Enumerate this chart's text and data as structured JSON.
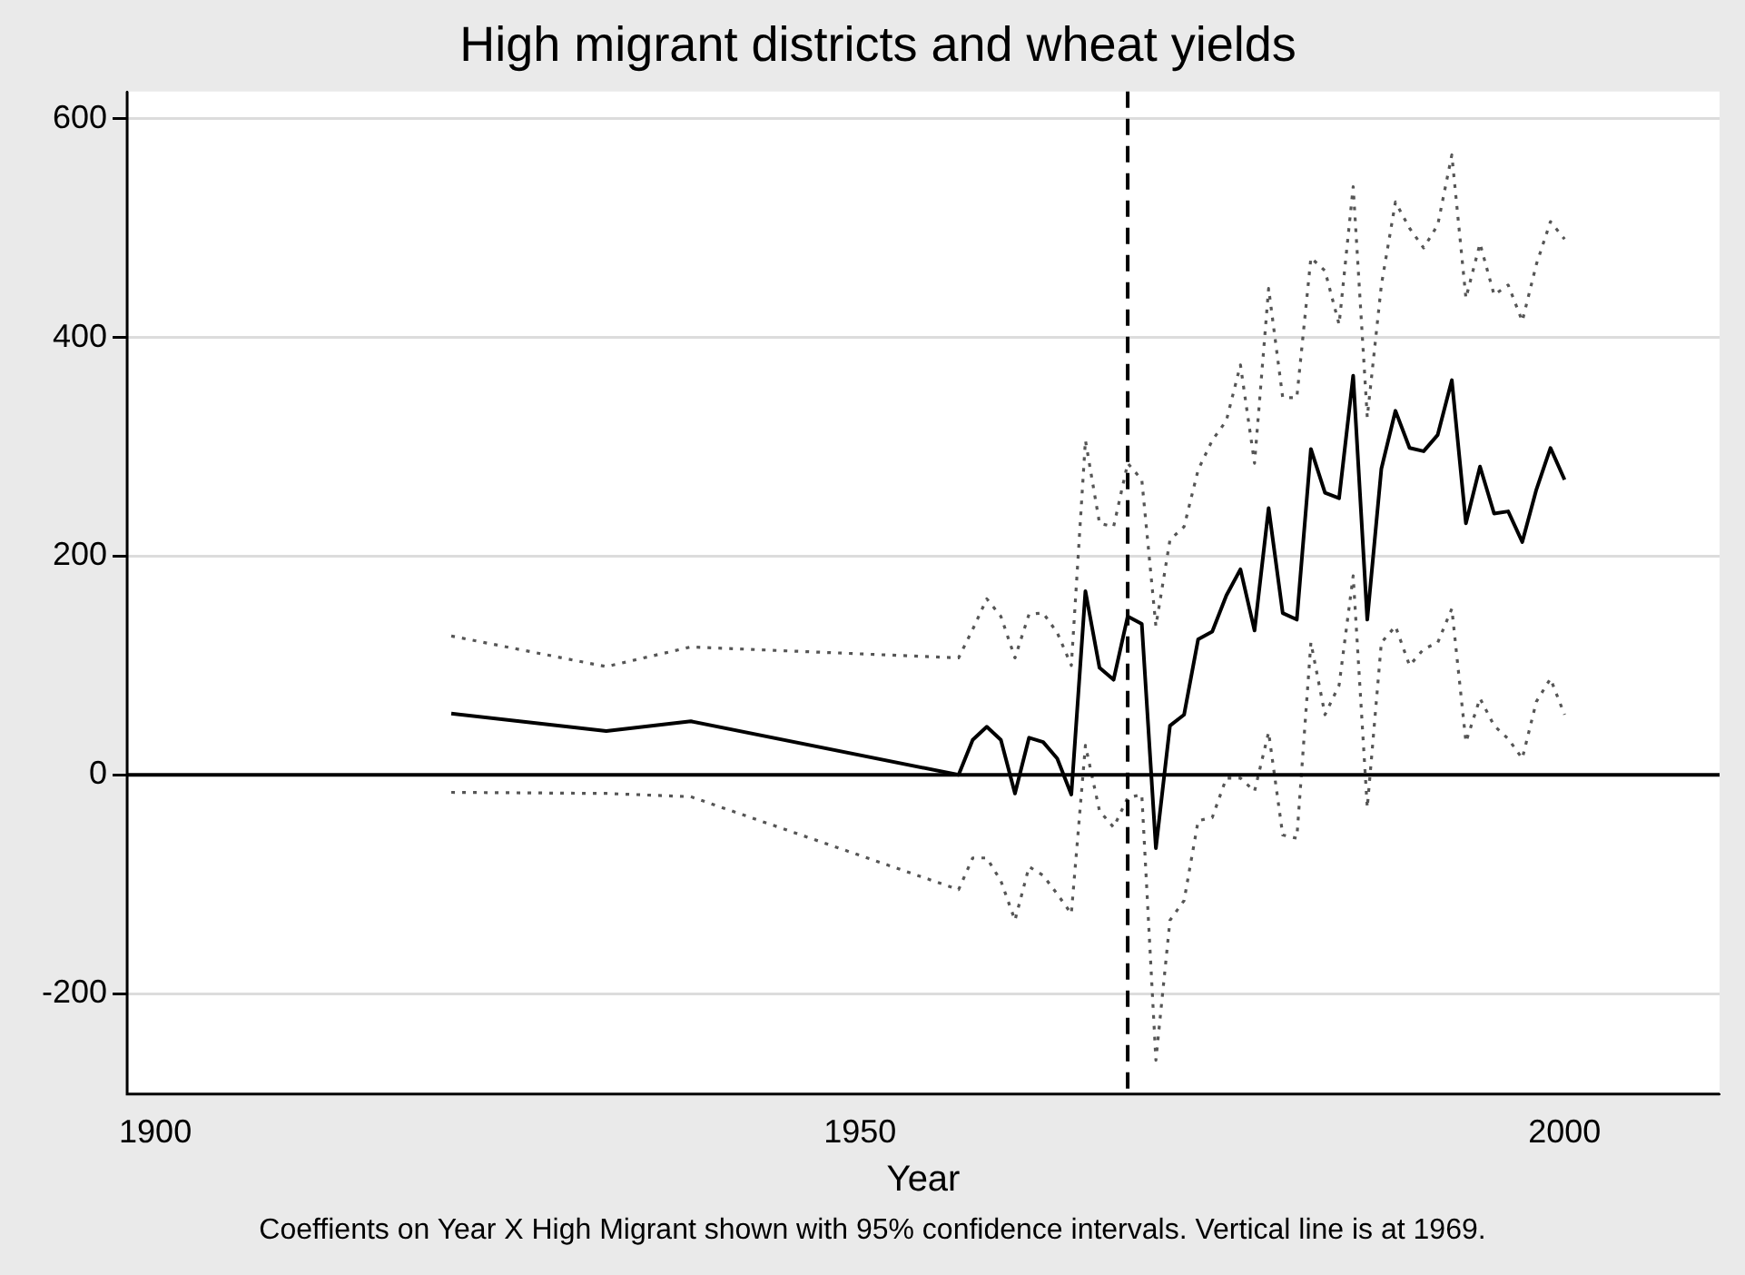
{
  "chart_data": {
    "type": "line",
    "title": "High migrant districts and wheat yields",
    "xlabel": "Year",
    "annotations": [
      "Coeffients on Year X High Migrant shown with 95% confidence intervals. Vertical line is at 1969."
    ],
    "xlim": [
      1898,
      2011
    ],
    "xticks": [
      1900,
      1950,
      2000
    ],
    "ylim": [
      -292,
      625
    ],
    "yticks": [
      -200,
      0,
      200,
      400,
      600
    ],
    "grid": "y",
    "legend": false,
    "marker": "none",
    "ref_lines": [
      {
        "axis": "y",
        "value": 0,
        "color": "#000000",
        "line_style": "solid"
      },
      {
        "axis": "x",
        "value": 1969,
        "color": "#000000",
        "line_style": "dashed"
      }
    ],
    "series": [
      {
        "color": "#000000",
        "line_style": "solid",
        "x": [
          1921,
          1932,
          1938,
          1957,
          1958,
          1959,
          1960,
          1961,
          1962,
          1963,
          1964,
          1965,
          1966,
          1967,
          1968,
          1969,
          1970,
          1971,
          1972,
          1973,
          1974,
          1975,
          1976,
          1977,
          1978,
          1979,
          1980,
          1981,
          1982,
          1983,
          1984,
          1985,
          1986,
          1987,
          1988,
          1989,
          1990,
          1991,
          1992,
          1993,
          1994,
          1995,
          1996,
          1997,
          1998,
          1999,
          2000
        ],
        "values": [
          56,
          40,
          49,
          0,
          32,
          44,
          32,
          -17,
          34,
          30,
          15,
          -18,
          168,
          98,
          87,
          145,
          138,
          -67,
          45,
          55,
          124,
          131,
          164,
          188,
          132,
          244,
          148,
          142,
          298,
          258,
          253,
          365,
          142,
          280,
          333,
          299,
          296,
          311,
          361,
          230,
          282,
          239,
          241,
          213,
          261,
          299,
          270
        ]
      },
      {
        "color": "#555555",
        "line_style": "dotted",
        "x": [
          1921,
          1932,
          1938,
          1957,
          1958,
          1959,
          1960,
          1961,
          1962,
          1963,
          1964,
          1965,
          1966,
          1967,
          1968,
          1969,
          1970,
          1971,
          1972,
          1973,
          1974,
          1975,
          1976,
          1977,
          1978,
          1979,
          1980,
          1981,
          1982,
          1983,
          1984,
          1985,
          1986,
          1987,
          1988,
          1989,
          1990,
          1991,
          1992,
          1993,
          1994,
          1995,
          1996,
          1997,
          1998,
          1999,
          2000
        ],
        "values": [
          127,
          99,
          117,
          107,
          133,
          161,
          145,
          107,
          147,
          148,
          130,
          100,
          306,
          230,
          227,
          285,
          270,
          136,
          215,
          227,
          279,
          306,
          324,
          375,
          285,
          445,
          345,
          345,
          473,
          461,
          412,
          538,
          327,
          448,
          524,
          500,
          482,
          503,
          567,
          436,
          486,
          439,
          448,
          415,
          467,
          506,
          490
        ]
      },
      {
        "color": "#555555",
        "line_style": "dotted",
        "x": [
          1921,
          1932,
          1938,
          1957,
          1958,
          1959,
          1960,
          1961,
          1962,
          1963,
          1964,
          1965,
          1966,
          1967,
          1968,
          1969,
          1970,
          1971,
          1972,
          1973,
          1974,
          1975,
          1976,
          1977,
          1978,
          1979,
          1980,
          1981,
          1982,
          1983,
          1984,
          1985,
          1986,
          1987,
          1988,
          1989,
          1990,
          1991,
          1992,
          1993,
          1994,
          1995,
          1996,
          1997,
          1998,
          1999,
          2000
        ],
        "values": [
          -16,
          -17,
          -20,
          -105,
          -76,
          -76,
          -97,
          -133,
          -84,
          -92,
          -109,
          -127,
          27,
          -33,
          -48,
          -21,
          -18,
          -261,
          -133,
          -115,
          -42,
          -39,
          -3,
          -3,
          -15,
          39,
          -55,
          -58,
          121,
          55,
          82,
          182,
          -30,
          121,
          136,
          100,
          115,
          121,
          152,
          30,
          70,
          45,
          33,
          15,
          67,
          88,
          55
        ]
      }
    ]
  }
}
